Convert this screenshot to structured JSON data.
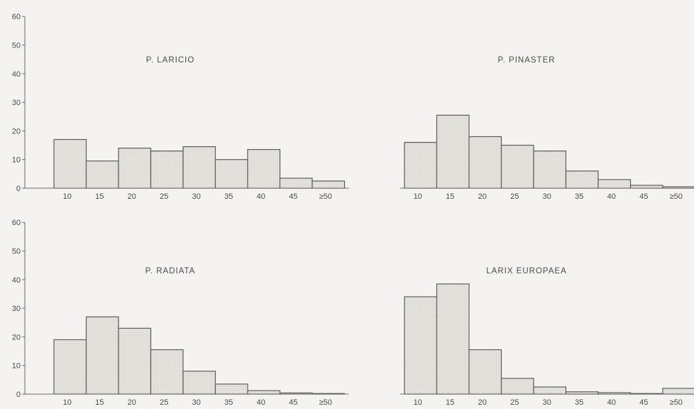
{
  "chart_data": [
    {
      "type": "bar",
      "title": "P. LARICIO",
      "categories": [
        "10",
        "15",
        "20",
        "25",
        "30",
        "35",
        "40",
        "45",
        "≥50"
      ],
      "values": [
        17,
        9.5,
        14,
        13,
        14.5,
        10,
        13.5,
        3.5,
        2.5
      ],
      "ylim": [
        0,
        60
      ],
      "yticks": [
        "0",
        "10",
        "20",
        "30",
        "40",
        "50",
        "60"
      ],
      "grid": false
    },
    {
      "type": "bar",
      "title": "P. PINASTER",
      "categories": [
        "10",
        "15",
        "20",
        "25",
        "30",
        "35",
        "40",
        "45",
        "≥50"
      ],
      "values": [
        16,
        25.5,
        18,
        15,
        13,
        6,
        3,
        1,
        0.5
      ],
      "ylim": [
        0,
        60
      ],
      "grid": false
    },
    {
      "type": "bar",
      "title": "P. RADIATA",
      "categories": [
        "10",
        "15",
        "20",
        "25",
        "30",
        "35",
        "40",
        "45",
        "≥50"
      ],
      "values": [
        19,
        27,
        23,
        15.5,
        8,
        3.5,
        1.2,
        0.4,
        0.2
      ],
      "ylim": [
        0,
        60
      ],
      "yticks": [
        "0",
        "10",
        "20",
        "30",
        "40",
        "50",
        "60"
      ],
      "grid": false
    },
    {
      "type": "bar",
      "title": "LARIX EUROPAEA",
      "categories": [
        "10",
        "15",
        "20",
        "25",
        "30",
        "35",
        "40",
        "45",
        "≥50"
      ],
      "values": [
        34,
        38.5,
        15.5,
        5.5,
        2.5,
        0.8,
        0.5,
        0.2,
        2
      ],
      "ylim": [
        0,
        60
      ],
      "grid": false
    }
  ],
  "colors": {
    "bar_fill": "#e6e4df",
    "bar_stroke": "#5c5c5c",
    "axis": "#6a6a6a",
    "text": "#4a4a4a"
  }
}
